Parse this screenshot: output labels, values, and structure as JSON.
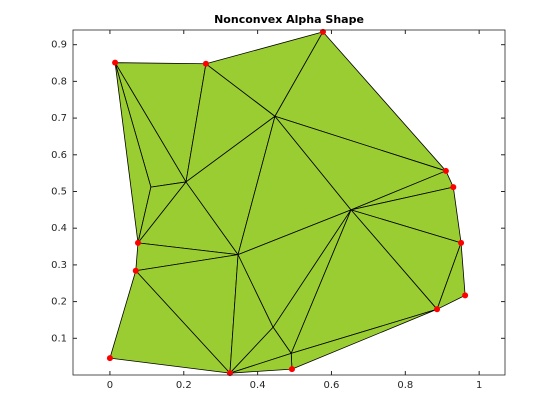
{
  "chart_data": {
    "type": "trimesh",
    "title": "Nonconvex Alpha Shape",
    "x": [
      0.014,
      0.26,
      0.577,
      0.91,
      0.93,
      0.951,
      0.962,
      0.886,
      0.493,
      0.325,
      0.0,
      0.07,
      0.076,
      0.111,
      0.206,
      0.447,
      0.347,
      0.653,
      0.442,
      0.491
    ],
    "y": [
      0.851,
      0.848,
      0.935,
      0.556,
      0.512,
      0.36,
      0.217,
      0.179,
      0.016,
      0.005,
      0.046,
      0.284,
      0.36,
      0.512,
      0.526,
      0.705,
      0.328,
      0.45,
      0.13,
      0.059
    ],
    "triangles": [
      [
        0,
        1,
        14
      ],
      [
        1,
        15,
        14
      ],
      [
        1,
        2,
        15
      ],
      [
        2,
        3,
        15
      ],
      [
        0,
        14,
        13
      ],
      [
        0,
        13,
        12
      ],
      [
        13,
        14,
        12
      ],
      [
        12,
        14,
        16
      ],
      [
        14,
        15,
        16
      ],
      [
        15,
        17,
        16
      ],
      [
        15,
        3,
        17
      ],
      [
        3,
        4,
        17
      ],
      [
        4,
        5,
        17
      ],
      [
        5,
        7,
        17
      ],
      [
        5,
        6,
        7
      ],
      [
        12,
        16,
        11
      ],
      [
        11,
        16,
        9
      ],
      [
        11,
        9,
        10
      ],
      [
        16,
        18,
        9
      ],
      [
        16,
        17,
        18
      ],
      [
        17,
        19,
        18
      ],
      [
        18,
        19,
        9
      ],
      [
        17,
        7,
        19
      ],
      [
        19,
        7,
        8
      ],
      [
        19,
        8,
        9
      ]
    ],
    "markers": [
      0,
      1,
      2,
      3,
      4,
      5,
      6,
      7,
      8,
      9,
      10,
      11,
      12
    ],
    "color": "#9acd32",
    "edge_color": "#000000",
    "marker_color": "#ff0000",
    "xlim": [
      -0.1,
      1.07
    ],
    "ylim": [
      0,
      0.94
    ],
    "xticks": [
      0,
      0.2,
      0.4,
      0.6,
      0.8,
      1
    ],
    "yticks": [
      0.1,
      0.2,
      0.3,
      0.4,
      0.5,
      0.6,
      0.7,
      0.8,
      0.9
    ]
  }
}
